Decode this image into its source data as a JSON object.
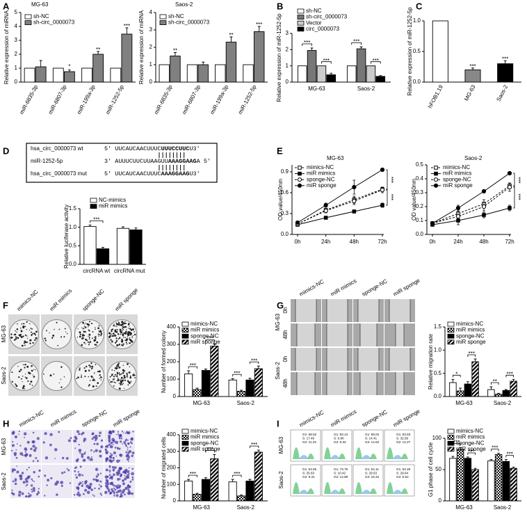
{
  "panel_letters": [
    "A",
    "B",
    "C",
    "D",
    "E",
    "F",
    "G",
    "H",
    "I"
  ],
  "sequence": {
    "rows": [
      {
        "name": "hsa_circ_0000073 wt",
        "pre": "5' UUCAUCAACUUUC",
        "bold": "UUUCCUUC",
        "post": "U3'"
      },
      {
        "name": "miR-1252-5p",
        "pre": "3' AUUUCUUCUUAAGUU",
        "bold": "AAAGGAAG",
        "post": "A 5'"
      },
      {
        "name": "hsa_circ_0000073 mut",
        "pre": "5' UUCAUCAACUUUC",
        "bold": "AAAGGAAG",
        "post": "U3'"
      }
    ]
  },
  "colony": {
    "columns": [
      "mimics-NC",
      "miR mimics",
      "sponge-NC",
      "miR sponge"
    ],
    "rows": [
      "MG-63",
      "Saos-2"
    ]
  },
  "wound": {
    "columns": [
      "mimics-NC",
      "miR mimics",
      "sponge-NC",
      "miR sponge"
    ],
    "rows": [
      "MG-63",
      "Saos-2"
    ],
    "times": [
      "0h",
      "48h"
    ]
  },
  "transwell": {
    "columns": [
      "mimics-NC",
      "miR mimics",
      "sponge-NC",
      "miR sponge"
    ],
    "rows": [
      "MG-63",
      "Saos-2"
    ]
  },
  "flow": {
    "columns": [
      "mimics-NC",
      "miR mimics",
      "sponge-NC",
      "miR sponge"
    ],
    "rows": [
      "MG-63",
      "Saos-2"
    ],
    "stats": [
      [
        [
          "G1: 68.52",
          "S: 17.49",
          "G2: 11.43"
        ],
        [
          "G1: 83.13",
          "S: 6.80",
          "G2: 9.32"
        ],
        [
          "G1: 69.04",
          "S: 14.41",
          "G2: 14.62"
        ],
        [
          "G1: 53.63",
          "S: 32.56",
          "G2: 12.27"
        ]
      ],
      [
        [
          "G1: 64.56",
          "S: 25.63",
          "G2: 9.31"
        ],
        [
          "G1: 73.76",
          "S: 10.42",
          "G2: 14.89"
        ],
        [
          "G1: 54.11",
          "S: 29.53",
          "G2: 15.42"
        ],
        [
          "G1: 64.26",
          "S: 29.64",
          "G2: 5.52"
        ]
      ]
    ]
  },
  "chart_data": [
    {
      "type": "bar",
      "title": "MG-63",
      "y_label": "Relative expression of miRNA",
      "categories": [
        "miR-6835-3p",
        "miR-6807-3p",
        "miR-199a-3p",
        "miR-1252-5p"
      ],
      "series": [
        {
          "name": "sh-NC",
          "color": "#ffffff",
          "values": [
            1,
            1,
            1,
            1
          ]
        },
        {
          "name": "sh-circ_0000073",
          "color": "#808080",
          "values": [
            1.1,
            0.75,
            2.0,
            3.45
          ],
          "errors": [
            0.45,
            0.12,
            0.2,
            0.45
          ]
        }
      ],
      "ylim": [
        0,
        5
      ],
      "yticks": [
        0,
        1,
        2,
        3,
        4,
        5
      ],
      "significance": [
        null,
        "*",
        "**",
        "***"
      ]
    },
    {
      "type": "bar",
      "title": "Saos-2",
      "y_label": "Relative expression of miRNA",
      "categories": [
        "miR-6835-3p",
        "miR-6807-3p",
        "miR-199a-3p",
        "miR-1252-5p"
      ],
      "series": [
        {
          "name": "sh-NC",
          "color": "#ffffff",
          "values": [
            1,
            1,
            1,
            1
          ]
        },
        {
          "name": "sh-circ_0000073",
          "color": "#808080",
          "values": [
            1.5,
            1.0,
            2.3,
            2.9
          ],
          "errors": [
            0.2,
            0.15,
            0.3,
            0.3
          ]
        }
      ],
      "ylim": [
        0,
        4
      ],
      "yticks": [
        0,
        1,
        2,
        3,
        4
      ],
      "significance": [
        "**",
        null,
        "**",
        "***"
      ]
    },
    {
      "type": "bar",
      "y_label": "Relative expression of miR-1252-5p",
      "categories": [
        "MG-63",
        "Saos-2"
      ],
      "series": [
        {
          "name": "sh-NC",
          "color": "#ffffff",
          "values": [
            1,
            1
          ]
        },
        {
          "name": "sh-circ_0000073",
          "color": "#777777",
          "values": [
            1.95,
            2.05
          ],
          "errors": [
            0.15,
            0.12
          ]
        },
        {
          "name": "Vector",
          "color": "#cccccc",
          "values": [
            1,
            1
          ]
        },
        {
          "name": "circ_0000073",
          "color": "#000000",
          "values": [
            0.45,
            0.35
          ],
          "errors": [
            0.1,
            0.05
          ]
        }
      ],
      "ylim": [
        0,
        3
      ],
      "yticks": [
        0,
        1,
        2,
        3
      ],
      "significance": [
        [
          "***",
          "***"
        ],
        [
          "***",
          "***"
        ]
      ]
    },
    {
      "type": "bar",
      "y_label": "Relative expression of miR-1252-5p",
      "categories": [
        "hFOB1.19",
        "MG-63",
        "Saos-2"
      ],
      "values": [
        1,
        0.2,
        0.3
      ],
      "errors": [
        0,
        0.03,
        0.05
      ],
      "colors": [
        "#ffffff",
        "#888888",
        "#000000"
      ],
      "ylim": [
        0,
        1.0
      ],
      "yticks": [
        {
          "value": 0,
          "label": "0.0"
        },
        0.5,
        {
          "value": 1,
          "label": "1.0"
        }
      ],
      "significance": [
        null,
        "***",
        "***"
      ]
    },
    {
      "type": "bar",
      "y_label": "Relative luciferase activity",
      "categories": [
        "circRNA wt",
        "circRNA mut"
      ],
      "series": [
        {
          "name": "NC-mimics",
          "color": "#ffffff",
          "values": [
            1.02,
            0.97
          ],
          "errors": [
            0.04,
            0.04
          ]
        },
        {
          "name": "miR mimics",
          "color": "#000000",
          "values": [
            0.42,
            0.93
          ],
          "errors": [
            0.04,
            0.05
          ]
        }
      ],
      "ylim": [
        0,
        1.5
      ],
      "yticks": [
        {
          "value": 0,
          "label": "0.0"
        },
        0.5,
        {
          "value": 1,
          "label": "1.0"
        },
        1.5
      ],
      "significance": [
        [
          "***"
        ],
        [
          null
        ]
      ]
    },
    {
      "type": "line",
      "title": "MG-63",
      "y_label": "OD value/450nm",
      "categories": [
        "0h",
        "24h",
        "48h",
        "72h"
      ],
      "series": [
        {
          "name": "mimics-NC",
          "dashed": true,
          "marker": "square",
          "filled": false,
          "values": [
            0.15,
            0.35,
            0.5,
            0.65
          ],
          "errors": [
            0.01,
            0.02,
            0.05,
            0.03
          ]
        },
        {
          "name": "miR mimics",
          "dashed": false,
          "marker": "square",
          "filled": true,
          "values": [
            0.14,
            0.24,
            0.33,
            0.42
          ],
          "errors": [
            0.01,
            0.02,
            0.02,
            0.03
          ]
        },
        {
          "name": "sponge-NC",
          "dashed": true,
          "marker": "circle",
          "filled": false,
          "values": [
            0.15,
            0.34,
            0.48,
            0.64
          ],
          "errors": [
            0.02,
            0.03,
            0.05,
            0.04
          ]
        },
        {
          "name": "miR sponge",
          "dashed": false,
          "marker": "circle",
          "filled": true,
          "values": [
            0.17,
            0.42,
            0.68,
            0.93
          ],
          "errors": [
            0.01,
            0.03,
            0.1,
            0.02
          ]
        }
      ],
      "ylim": [
        0,
        1.0
      ],
      "yticks": [
        {
          "value": 0,
          "label": "0.0"
        },
        0.3,
        0.6,
        0.9
      ],
      "significance": [
        "***",
        "***"
      ]
    },
    {
      "type": "line",
      "title": "Saos-2",
      "y_label": "OD value/450nm",
      "categories": [
        "0h",
        "24h",
        "48h",
        "72h"
      ],
      "series": [
        {
          "name": "mimics-NC",
          "dashed": true,
          "marker": "square",
          "filled": false,
          "values": [
            0.08,
            0.15,
            0.22,
            0.35
          ],
          "errors": [
            0.01,
            0.05,
            0.03,
            0.02
          ]
        },
        {
          "name": "miR mimics",
          "dashed": false,
          "marker": "square",
          "filled": true,
          "values": [
            0.07,
            0.1,
            0.14,
            0.19
          ],
          "errors": [
            0.01,
            0.03,
            0.02,
            0.02
          ]
        },
        {
          "name": "sponge-NC",
          "dashed": true,
          "marker": "circle",
          "filled": false,
          "values": [
            0.08,
            0.13,
            0.2,
            0.34
          ],
          "errors": [
            0.01,
            0.04,
            0.03,
            0.03
          ]
        },
        {
          "name": "miR sponge",
          "dashed": false,
          "marker": "circle",
          "filled": true,
          "values": [
            0.08,
            0.19,
            0.31,
            0.44
          ],
          "errors": [
            0.01,
            0.02,
            0.01,
            0.01
          ]
        }
      ],
      "ylim": [
        0,
        0.5
      ],
      "yticks": [
        {
          "value": 0,
          "label": "0.0"
        },
        0.1,
        0.2,
        0.3,
        0.4,
        0.5
      ],
      "significance": [
        "***",
        "***"
      ]
    },
    {
      "type": "bar",
      "y_label": "Number of formed colony",
      "categories": [
        "MG-63",
        "Saos-2"
      ],
      "series": [
        {
          "name": "mimics-NC",
          "color": "#ffffff",
          "values": [
            130,
            95
          ],
          "errors": [
            18,
            8
          ]
        },
        {
          "name": "miR mimics",
          "pattern": "checker",
          "values": [
            40,
            30
          ],
          "errors": [
            8,
            6
          ]
        },
        {
          "name": "sponge-NC",
          "color": "#000000",
          "values": [
            150,
            95
          ],
          "errors": [
            8,
            10
          ]
        },
        {
          "name": "miR sponge",
          "pattern": "stripe",
          "values": [
            290,
            160
          ],
          "errors": [
            12,
            15
          ]
        }
      ],
      "ylim": [
        0,
        400
      ],
      "yticks": [
        0,
        100,
        200,
        300,
        400
      ],
      "significance": [
        [
          "***",
          "***"
        ],
        [
          "***",
          "***"
        ]
      ]
    },
    {
      "type": "bar",
      "y_label": "Relative migration rate",
      "categories": [
        "MG-63",
        "Saos-2"
      ],
      "series": [
        {
          "name": "mimics-NC",
          "color": "#ffffff",
          "values": [
            0.3,
            0.15
          ],
          "errors": [
            0.07,
            0.06
          ]
        },
        {
          "name": "miR mimics",
          "pattern": "checker",
          "values": [
            0.12,
            0.05
          ],
          "errors": [
            0.06,
            0.02
          ]
        },
        {
          "name": "sponge-NC",
          "color": "#000000",
          "values": [
            0.27,
            0.13
          ],
          "errors": [
            0.05,
            0.02
          ]
        },
        {
          "name": "miR sponge",
          "pattern": "stripe",
          "values": [
            0.75,
            0.33
          ],
          "errors": [
            0.06,
            0.04
          ]
        }
      ],
      "ylim": [
        0,
        1.5
      ],
      "yticks": [
        {
          "value": 0,
          "label": "0.0"
        },
        0.5,
        {
          "value": 1,
          "label": "1.0"
        },
        1.5
      ],
      "significance": [
        [
          "*",
          "***"
        ],
        [
          "**",
          "***"
        ]
      ]
    },
    {
      "type": "bar",
      "y_label": "Number of migrated cells",
      "categories": [
        "MG-63",
        "Saos-2"
      ],
      "series": [
        {
          "name": "mimics-NC",
          "color": "#ffffff",
          "values": [
            120,
            115
          ],
          "errors": [
            10,
            15
          ]
        },
        {
          "name": "miR mimics",
          "pattern": "checker",
          "values": [
            40,
            30
          ],
          "errors": [
            6,
            6
          ]
        },
        {
          "name": "sponge-NC",
          "color": "#000000",
          "values": [
            130,
            120
          ],
          "errors": [
            10,
            10
          ]
        },
        {
          "name": "miR sponge",
          "pattern": "stripe",
          "values": [
            255,
            295
          ],
          "errors": [
            25,
            12
          ]
        }
      ],
      "ylim": [
        0,
        400
      ],
      "yticks": [
        0,
        100,
        200,
        300,
        400
      ],
      "significance": [
        [
          "***",
          "***"
        ],
        [
          "***",
          "***"
        ]
      ]
    },
    {
      "type": "bar",
      "y_label": "G1 phase of cell cycle",
      "categories": [
        "MG-63",
        "Saos-2"
      ],
      "series": [
        {
          "name": "mimics-NC",
          "color": "#ffffff",
          "values": [
            68,
            64
          ],
          "errors": [
            3,
            2
          ]
        },
        {
          "name": "miR mimics",
          "pattern": "checker",
          "values": [
            82,
            74
          ],
          "errors": [
            3,
            2
          ]
        },
        {
          "name": "sponge-NC",
          "color": "#000000",
          "values": [
            68,
            63
          ],
          "errors": [
            2,
            3
          ]
        },
        {
          "name": "miR sponge",
          "pattern": "stripe",
          "values": [
            50,
            52
          ],
          "errors": [
            2,
            2
          ]
        }
      ],
      "ylim": [
        0,
        100
      ],
      "yticks": [
        0,
        50,
        100
      ],
      "significance": [
        [
          "***",
          "***"
        ],
        [
          "***",
          "***"
        ]
      ]
    }
  ]
}
